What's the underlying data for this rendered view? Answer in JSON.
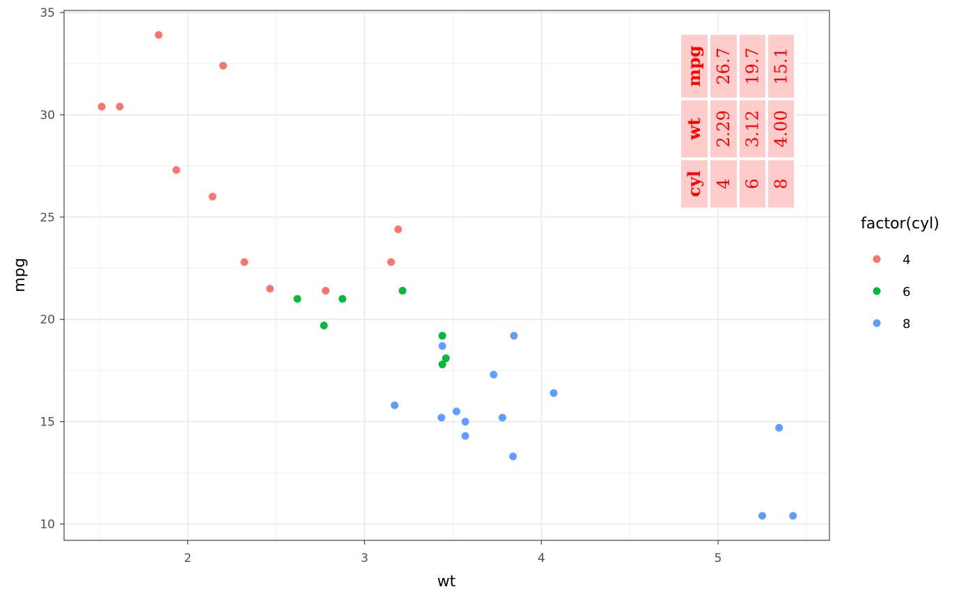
{
  "chart_data": {
    "type": "scatter",
    "xlabel": "wt",
    "ylabel": "mpg",
    "xlim": [
      1.3,
      5.63
    ],
    "ylim": [
      9.2,
      35.1
    ],
    "x_ticks": [
      2,
      3,
      4,
      5
    ],
    "y_ticks": [
      10,
      15,
      20,
      25,
      30,
      35
    ],
    "grid": true,
    "legend": {
      "title": "factor(cyl)",
      "position": "right"
    },
    "series": [
      {
        "name": "4",
        "color": "#F8766D",
        "points": [
          {
            "x": 1.513,
            "y": 30.4
          },
          {
            "x": 1.615,
            "y": 30.4
          },
          {
            "x": 1.835,
            "y": 33.9
          },
          {
            "x": 1.935,
            "y": 27.3
          },
          {
            "x": 2.14,
            "y": 26.0
          },
          {
            "x": 2.2,
            "y": 32.4
          },
          {
            "x": 2.32,
            "y": 22.8
          },
          {
            "x": 2.465,
            "y": 21.5
          },
          {
            "x": 2.78,
            "y": 21.4
          },
          {
            "x": 3.15,
            "y": 22.8
          },
          {
            "x": 3.19,
            "y": 24.4
          }
        ]
      },
      {
        "name": "6",
        "color": "#00BA38",
        "points": [
          {
            "x": 2.62,
            "y": 21.0
          },
          {
            "x": 2.77,
            "y": 19.7
          },
          {
            "x": 2.875,
            "y": 21.0
          },
          {
            "x": 3.215,
            "y": 21.4
          },
          {
            "x": 3.44,
            "y": 19.2
          },
          {
            "x": 3.44,
            "y": 17.8
          },
          {
            "x": 3.46,
            "y": 18.1
          }
        ]
      },
      {
        "name": "8",
        "color": "#619CFF",
        "points": [
          {
            "x": 3.17,
            "y": 15.8
          },
          {
            "x": 3.435,
            "y": 15.2
          },
          {
            "x": 3.44,
            "y": 18.7
          },
          {
            "x": 3.52,
            "y": 15.5
          },
          {
            "x": 3.57,
            "y": 14.3
          },
          {
            "x": 3.57,
            "y": 15.0
          },
          {
            "x": 3.73,
            "y": 17.3
          },
          {
            "x": 3.78,
            "y": 15.2
          },
          {
            "x": 3.84,
            "y": 13.3
          },
          {
            "x": 3.845,
            "y": 19.2
          },
          {
            "x": 4.07,
            "y": 16.4
          },
          {
            "x": 5.25,
            "y": 10.4
          },
          {
            "x": 5.345,
            "y": 14.7
          },
          {
            "x": 5.424,
            "y": 10.4
          }
        ]
      }
    ],
    "annotation_table": {
      "text_color": "#FF0000",
      "fill_color": "#FFCCCC",
      "rows": [
        {
          "header": "mpg",
          "values": [
            "26.7",
            "19.7",
            "15.1"
          ]
        },
        {
          "header": "wt",
          "values": [
            "2.29",
            "3.12",
            "4.00"
          ]
        },
        {
          "header": "cyl",
          "values": [
            "4",
            "6",
            "8"
          ]
        }
      ]
    }
  }
}
